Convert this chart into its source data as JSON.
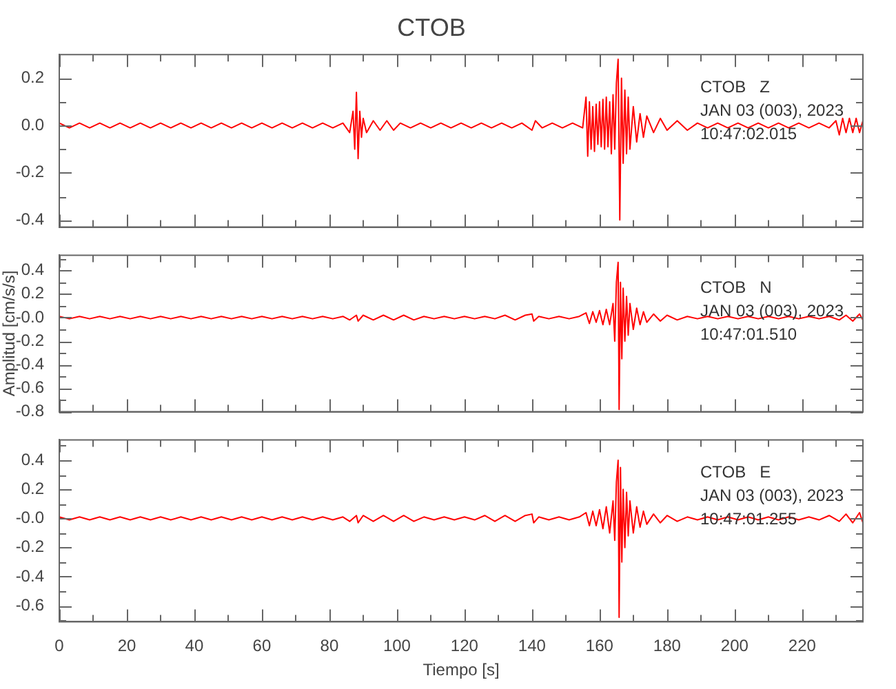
{
  "chart_data": [
    {
      "type": "line",
      "title": "CTOB",
      "annotations": [
        "CTOB   Z",
        "JAN 03 (003), 2023",
        "10:47:02.015"
      ],
      "tick_labels": "y",
      "xlim": [
        0,
        238
      ],
      "xticks": [
        0,
        {
          "value": 10,
          "label": null
        },
        20,
        {
          "value": 30,
          "label": null
        },
        40,
        {
          "value": 50,
          "label": null
        },
        60,
        {
          "value": 70,
          "label": null
        },
        80,
        {
          "value": 90,
          "label": null
        },
        100,
        {
          "value": 110,
          "label": null
        },
        120,
        {
          "value": 130,
          "label": null
        },
        140,
        {
          "value": 150,
          "label": null
        },
        160,
        {
          "value": 170,
          "label": null
        },
        180,
        {
          "value": 190,
          "label": null
        },
        200,
        {
          "value": 210,
          "label": null
        },
        220,
        {
          "value": 230,
          "label": null
        }
      ],
      "ylim": [
        -0.43,
        0.3
      ],
      "yticks": [
        -0.4,
        {
          "value": -0.3,
          "label": null
        },
        -0.2,
        {
          "value": -0.1,
          "label": null
        },
        {
          "value": 0,
          "label": "0.0"
        },
        {
          "value": 0.1,
          "label": null
        },
        0.2
      ],
      "series": [
        {
          "color": "#ff0000",
          "x": [
            0,
            3,
            6,
            9,
            12,
            15,
            18,
            21,
            24,
            27,
            30,
            33,
            36,
            39,
            42,
            45,
            48,
            51,
            54,
            57,
            60,
            63,
            66,
            69,
            72,
            75,
            78,
            81,
            84,
            86,
            87,
            87.5,
            88,
            88.5,
            89,
            89.5,
            90,
            91,
            93,
            95,
            97,
            99,
            101,
            104,
            107,
            110,
            113,
            116,
            119,
            122,
            125,
            128,
            131,
            134,
            137,
            140,
            141,
            143,
            146,
            149,
            152,
            155,
            156,
            156.5,
            157,
            157.5,
            158,
            158.5,
            159,
            159.5,
            160,
            160.5,
            161,
            161.5,
            162,
            162.5,
            163,
            163.5,
            164,
            164.5,
            165,
            165.5,
            166,
            166.5,
            167,
            167.5,
            168,
            168.5,
            169,
            170,
            171,
            172,
            173,
            174,
            176,
            178,
            180,
            183,
            186,
            189,
            192,
            195,
            198,
            201,
            204,
            207,
            210,
            213,
            216,
            219,
            222,
            225,
            228,
            230,
            231,
            232,
            233,
            234,
            235,
            236,
            237,
            238
          ],
          "values": [
            0.01,
            -0.01,
            0.01,
            -0.01,
            0.01,
            -0.01,
            0.01,
            -0.01,
            0.01,
            -0.01,
            0.01,
            -0.01,
            0.01,
            -0.01,
            0.01,
            -0.01,
            0.01,
            -0.01,
            0.01,
            -0.01,
            0.01,
            -0.01,
            0.01,
            -0.01,
            0.01,
            -0.01,
            0.01,
            -0.01,
            0.01,
            -0.03,
            0.06,
            -0.1,
            0.14,
            -0.14,
            0.06,
            -0.05,
            0.03,
            -0.03,
            0.02,
            -0.02,
            0.02,
            -0.02,
            0.01,
            -0.01,
            0.01,
            -0.01,
            0.01,
            -0.01,
            0.01,
            -0.01,
            0.01,
            -0.01,
            0.01,
            -0.01,
            0.01,
            -0.02,
            0.02,
            -0.01,
            0.01,
            -0.01,
            0.01,
            -0.01,
            0.12,
            -0.13,
            0.1,
            -0.1,
            0.08,
            -0.11,
            0.09,
            -0.08,
            0.1,
            -0.09,
            0.11,
            -0.1,
            0.12,
            -0.09,
            0.1,
            -0.12,
            0.13,
            -0.1,
            0.18,
            0.28,
            -0.4,
            0.2,
            -0.16,
            0.15,
            -0.12,
            0.12,
            -0.1,
            0.08,
            -0.07,
            0.05,
            -0.05,
            0.04,
            -0.03,
            0.03,
            -0.02,
            0.02,
            -0.02,
            0.01,
            -0.01,
            0.01,
            -0.01,
            0.01,
            -0.01,
            0.01,
            -0.01,
            0.01,
            -0.01,
            0.01,
            -0.01,
            0.01,
            -0.01,
            0.02,
            -0.04,
            0.03,
            -0.03,
            0.03,
            -0.03,
            0.03,
            -0.03,
            0.02
          ]
        }
      ]
    },
    {
      "type": "line",
      "ylabel": "Amplitud [cm/s/s]",
      "annotations": [
        "CTOB   N",
        "JAN 03 (003), 2023",
        "10:47:01.510"
      ],
      "tick_labels": "y",
      "xlim": [
        0,
        238
      ],
      "xticks": [
        0,
        {
          "value": 10,
          "label": null
        },
        20,
        {
          "value": 30,
          "label": null
        },
        40,
        {
          "value": 50,
          "label": null
        },
        60,
        {
          "value": 70,
          "label": null
        },
        80,
        {
          "value": 90,
          "label": null
        },
        100,
        {
          "value": 110,
          "label": null
        },
        120,
        {
          "value": 130,
          "label": null
        },
        140,
        {
          "value": 150,
          "label": null
        },
        160,
        {
          "value": 170,
          "label": null
        },
        180,
        {
          "value": 190,
          "label": null
        },
        200,
        {
          "value": 210,
          "label": null
        },
        220,
        {
          "value": 230,
          "label": null
        }
      ],
      "ylim": [
        -0.8,
        0.53
      ],
      "yticks": [
        -0.8,
        {
          "value": -0.7,
          "label": null
        },
        -0.6,
        {
          "value": -0.5,
          "label": null
        },
        -0.4,
        {
          "value": -0.3,
          "label": null
        },
        -0.2,
        {
          "value": -0.1,
          "label": null
        },
        {
          "value": 0,
          "label": "-0.0"
        },
        {
          "value": 0.1,
          "label": null
        },
        0.2,
        {
          "value": 0.3,
          "label": null
        },
        0.4,
        {
          "value": 0.5,
          "label": null
        }
      ],
      "series": [
        {
          "color": "#ff0000",
          "x": [
            0,
            3,
            6,
            9,
            12,
            15,
            18,
            21,
            24,
            27,
            30,
            33,
            36,
            39,
            42,
            45,
            48,
            51,
            54,
            57,
            60,
            63,
            66,
            69,
            72,
            75,
            78,
            81,
            84,
            86,
            88,
            88.5,
            90,
            93,
            96,
            99,
            102,
            105,
            108,
            111,
            114,
            117,
            120,
            123,
            126,
            129,
            132,
            135,
            138,
            140,
            140.5,
            142,
            145,
            148,
            151,
            154,
            156,
            157,
            158,
            159,
            160,
            161,
            162,
            163,
            164,
            164.5,
            165,
            165.5,
            165.8,
            166.2,
            166.6,
            167,
            167.5,
            168,
            168.5,
            169,
            170,
            171,
            172,
            173,
            174,
            176,
            178,
            180,
            183,
            186,
            189,
            192,
            195,
            198,
            201,
            204,
            207,
            210,
            213,
            216,
            219,
            222,
            225,
            228,
            231,
            233,
            235,
            237,
            238
          ],
          "values": [
            0.01,
            -0.01,
            0.01,
            -0.01,
            0.01,
            -0.01,
            0.01,
            -0.01,
            0.01,
            -0.01,
            0.01,
            -0.01,
            0.01,
            -0.01,
            0.01,
            -0.01,
            0.01,
            -0.01,
            0.01,
            -0.01,
            0.01,
            -0.01,
            0.01,
            -0.01,
            0.01,
            -0.01,
            0.01,
            -0.01,
            0.01,
            -0.02,
            0.02,
            -0.03,
            0.02,
            -0.02,
            0.02,
            -0.02,
            0.02,
            -0.02,
            0.01,
            -0.01,
            0.01,
            -0.01,
            0.01,
            -0.01,
            0.01,
            -0.01,
            0.02,
            -0.02,
            0.02,
            0.03,
            -0.03,
            0.01,
            -0.01,
            0.01,
            -0.01,
            0.01,
            0.04,
            -0.05,
            0.05,
            -0.04,
            0.06,
            -0.06,
            0.07,
            -0.06,
            0.12,
            -0.2,
            0.3,
            0.47,
            -0.78,
            0.3,
            -0.35,
            0.25,
            -0.2,
            0.18,
            -0.15,
            0.12,
            -0.1,
            0.08,
            -0.06,
            0.05,
            -0.04,
            0.03,
            -0.03,
            0.02,
            -0.02,
            0.01,
            -0.01,
            0.01,
            -0.01,
            0.01,
            -0.01,
            0.01,
            -0.01,
            0.01,
            -0.01,
            0.01,
            -0.01,
            0.01,
            -0.01,
            0.01,
            -0.02,
            0.02,
            -0.03,
            0.03,
            -0.02
          ]
        }
      ]
    },
    {
      "type": "line",
      "xlabel": "Tiempo [s]",
      "annotations": [
        "CTOB   E",
        "JAN 03 (003), 2023",
        "10:47:01.255"
      ],
      "xlim": [
        0,
        238
      ],
      "xticks": [
        0,
        {
          "value": 10,
          "label": null
        },
        20,
        {
          "value": 30,
          "label": null
        },
        40,
        {
          "value": 50,
          "label": null
        },
        60,
        {
          "value": 70,
          "label": null
        },
        80,
        {
          "value": 90,
          "label": null
        },
        100,
        {
          "value": 110,
          "label": null
        },
        120,
        {
          "value": 130,
          "label": null
        },
        140,
        {
          "value": 150,
          "label": null
        },
        160,
        {
          "value": 170,
          "label": null
        },
        180,
        {
          "value": 190,
          "label": null
        },
        200,
        {
          "value": 210,
          "label": null
        },
        220,
        {
          "value": 230,
          "label": null
        }
      ],
      "ylim": [
        -0.71,
        0.54
      ],
      "yticks": [
        {
          "value": -0.7,
          "label": null
        },
        -0.6,
        {
          "value": -0.5,
          "label": null
        },
        -0.4,
        {
          "value": -0.3,
          "label": null
        },
        -0.2,
        {
          "value": -0.1,
          "label": null
        },
        {
          "value": 0,
          "label": "-0.0"
        },
        {
          "value": 0.1,
          "label": null
        },
        0.2,
        {
          "value": 0.3,
          "label": null
        },
        0.4,
        {
          "value": 0.5,
          "label": null
        }
      ],
      "series": [
        {
          "color": "#ff0000",
          "x": [
            0,
            3,
            6,
            9,
            12,
            15,
            18,
            21,
            24,
            27,
            30,
            33,
            36,
            39,
            42,
            45,
            48,
            51,
            54,
            57,
            60,
            63,
            66,
            69,
            72,
            75,
            78,
            81,
            84,
            86,
            88,
            88.5,
            90,
            93,
            96,
            99,
            102,
            105,
            108,
            111,
            114,
            117,
            120,
            123,
            126,
            129,
            132,
            135,
            138,
            140,
            140.5,
            142,
            145,
            148,
            151,
            154,
            156,
            157,
            158,
            159,
            160,
            161,
            162,
            163,
            164,
            164.5,
            165,
            165.5,
            165.8,
            166.2,
            166.6,
            167,
            167.5,
            168,
            168.5,
            169,
            170,
            171,
            172,
            173,
            174,
            176,
            178,
            180,
            183,
            186,
            189,
            192,
            195,
            198,
            201,
            204,
            207,
            210,
            213,
            216,
            219,
            222,
            225,
            228,
            231,
            233,
            235,
            237,
            238
          ],
          "values": [
            0.01,
            -0.01,
            0.01,
            -0.01,
            0.01,
            -0.01,
            0.01,
            -0.01,
            0.01,
            -0.01,
            0.01,
            -0.01,
            0.01,
            -0.01,
            0.01,
            -0.01,
            0.01,
            -0.01,
            0.01,
            -0.01,
            0.01,
            -0.01,
            0.01,
            -0.01,
            0.01,
            -0.01,
            0.01,
            -0.01,
            0.01,
            -0.02,
            0.02,
            -0.03,
            0.02,
            -0.02,
            0.02,
            -0.02,
            0.02,
            -0.02,
            0.01,
            -0.01,
            0.01,
            -0.01,
            0.01,
            -0.01,
            0.02,
            -0.02,
            0.02,
            -0.02,
            0.02,
            0.03,
            -0.03,
            0.01,
            -0.01,
            0.01,
            -0.01,
            0.01,
            0.04,
            -0.05,
            0.05,
            -0.05,
            0.06,
            -0.07,
            0.08,
            -0.1,
            0.12,
            -0.15,
            0.25,
            0.4,
            -0.68,
            0.35,
            -0.3,
            0.2,
            -0.2,
            0.18,
            -0.12,
            0.12,
            -0.1,
            0.08,
            -0.06,
            0.05,
            -0.04,
            0.03,
            -0.03,
            0.02,
            -0.02,
            0.01,
            -0.01,
            0.01,
            -0.01,
            0.01,
            -0.01,
            0.01,
            -0.01,
            0.01,
            -0.01,
            0.01,
            -0.01,
            0.01,
            -0.01,
            0.02,
            -0.02,
            0.03,
            -0.03,
            0.04,
            -0.03
          ]
        }
      ]
    }
  ]
}
